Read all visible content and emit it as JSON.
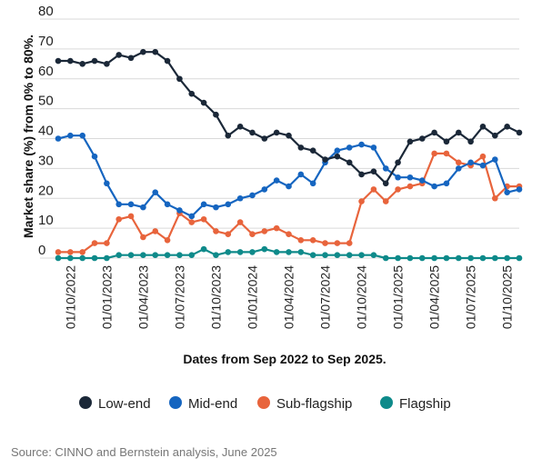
{
  "chart_data": {
    "type": "line",
    "xlabel": "Dates from Sep 2022 to Sep 2025.",
    "ylabel": "Market share (%) from 0% to 80%.",
    "ylim": [
      0,
      80
    ],
    "yticks": [
      0,
      10,
      20,
      30,
      40,
      50,
      60,
      70,
      80
    ],
    "grid": "horizontal",
    "legend_position": "bottom",
    "xtick_labels": [
      "01/10/2022",
      "01/01/2023",
      "01/04/2023",
      "01/07/2023",
      "01/10/2023",
      "01/01/2024",
      "01/04/2024",
      "01/07/2024",
      "01/10/2024",
      "01/01/2025",
      "01/04/2025",
      "01/07/2025",
      "01/10/2025"
    ],
    "x_start": "Sep 2022",
    "x_end": "Sep 2025",
    "series": [
      {
        "name": "Low-end",
        "color": "#1b2838",
        "values": [
          66,
          66,
          65,
          66,
          65,
          68,
          67,
          69,
          69,
          66,
          60,
          55,
          52,
          48,
          41,
          44,
          42,
          40,
          42,
          41,
          37,
          36,
          33,
          34,
          32,
          28,
          29,
          25,
          32,
          39,
          40,
          42,
          39,
          42,
          39,
          44,
          41,
          44,
          42
        ]
      },
      {
        "name": "Mid-end",
        "color": "#1565c0",
        "values": [
          40,
          41,
          41,
          34,
          25,
          18,
          18,
          17,
          22,
          18,
          16,
          14,
          18,
          17,
          18,
          20,
          21,
          23,
          26,
          24,
          28,
          25,
          32,
          36,
          37,
          38,
          37,
          30,
          27,
          27,
          26,
          24,
          25,
          30,
          32,
          31,
          33,
          22,
          23
        ]
      },
      {
        "name": "Sub-flagship",
        "color": "#e8643c",
        "values": [
          2,
          2,
          2,
          5,
          5,
          13,
          14,
          7,
          9,
          6,
          15,
          12,
          13,
          9,
          8,
          12,
          8,
          9,
          10,
          8,
          6,
          6,
          5,
          5,
          5,
          19,
          23,
          19,
          23,
          24,
          25,
          35,
          35,
          32,
          31,
          34,
          20,
          24,
          24
        ]
      },
      {
        "name": "Flagship",
        "color": "#0e8a8a",
        "values": [
          0,
          0,
          0,
          0,
          0,
          1,
          1,
          1,
          1,
          1,
          1,
          1,
          3,
          1,
          2,
          2,
          2,
          3,
          2,
          2,
          2,
          1,
          1,
          1,
          1,
          1,
          1,
          0,
          0,
          0,
          0,
          0,
          0,
          0,
          0,
          0,
          0,
          0,
          0
        ]
      }
    ]
  },
  "source": "Source: CINNO and Bernstein analysis, June 2025"
}
